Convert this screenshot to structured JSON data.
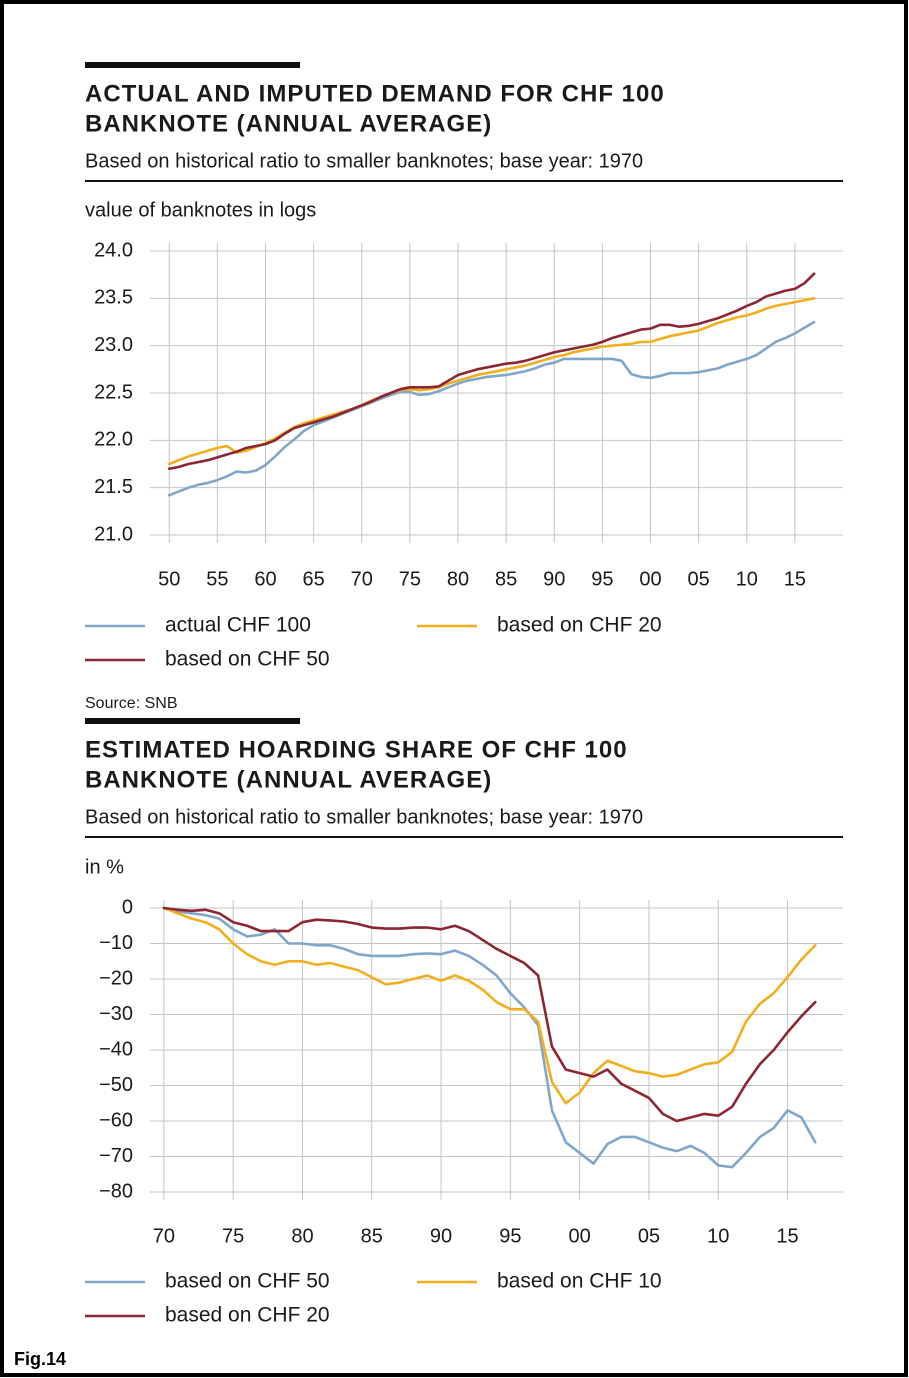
{
  "chart_data": [
    {
      "type": "line",
      "title": [
        "ACTUAL AND IMPUTED DEMAND FOR CHF 100",
        "BANKNOTE (ANNUAL AVERAGE)"
      ],
      "subtitle": "Based on historical ratio to smaller banknotes; base year: 1970",
      "y_label": "value of banknotes in logs",
      "source": "Source: SNB",
      "x": [
        1950,
        1951,
        1952,
        1953,
        1954,
        1955,
        1956,
        1957,
        1958,
        1959,
        1960,
        1961,
        1962,
        1963,
        1964,
        1965,
        1966,
        1967,
        1968,
        1969,
        1970,
        1971,
        1972,
        1973,
        1974,
        1975,
        1976,
        1977,
        1978,
        1979,
        1980,
        1981,
        1982,
        1983,
        1984,
        1985,
        1986,
        1987,
        1988,
        1989,
        1990,
        1991,
        1992,
        1993,
        1994,
        1995,
        1996,
        1997,
        1998,
        1999,
        2000,
        2001,
        2002,
        2003,
        2004,
        2005,
        2006,
        2007,
        2008,
        2009,
        2010,
        2011,
        2012,
        2013,
        2014,
        2015,
        2016,
        2017
      ],
      "xlim": [
        1948,
        2020
      ],
      "xticks": [
        {
          "value": 1950,
          "label": "50"
        },
        {
          "value": 1955,
          "label": "55"
        },
        {
          "value": 1960,
          "label": "60"
        },
        {
          "value": 1965,
          "label": "65"
        },
        {
          "value": 1970,
          "label": "70"
        },
        {
          "value": 1975,
          "label": "75"
        },
        {
          "value": 1980,
          "label": "80"
        },
        {
          "value": 1985,
          "label": "85"
        },
        {
          "value": 1990,
          "label": "90"
        },
        {
          "value": 1995,
          "label": "95"
        },
        {
          "value": 2000,
          "label": "00"
        },
        {
          "value": 2005,
          "label": "05"
        },
        {
          "value": 2010,
          "label": "10"
        },
        {
          "value": 2015,
          "label": "15"
        }
      ],
      "ylim": [
        21,
        24
      ],
      "yticks": [
        {
          "value": 21,
          "label": "21.0"
        },
        21.5,
        {
          "value": 22,
          "label": "22.0"
        },
        22.5,
        {
          "value": 23,
          "label": "23.0"
        },
        23.5,
        {
          "value": 24,
          "label": "24.0"
        }
      ],
      "grid": true,
      "series": [
        {
          "name": "actual CHF 100",
          "color": "#80a7ca",
          "values": [
            21.42,
            21.46,
            21.5,
            21.53,
            21.55,
            21.58,
            21.62,
            21.67,
            21.66,
            21.68,
            21.74,
            21.83,
            21.93,
            22.01,
            22.1,
            22.16,
            22.2,
            22.24,
            22.28,
            22.32,
            22.36,
            22.4,
            22.44,
            22.48,
            22.51,
            22.51,
            22.48,
            22.49,
            22.52,
            22.56,
            22.6,
            22.63,
            22.65,
            22.67,
            22.68,
            22.69,
            22.71,
            22.73,
            22.76,
            22.8,
            22.82,
            22.86,
            22.86,
            22.86,
            22.86,
            22.86,
            22.86,
            22.84,
            22.7,
            22.67,
            22.66,
            22.68,
            22.71,
            22.71,
            22.71,
            22.72,
            22.74,
            22.76,
            22.8,
            22.83,
            22.86,
            22.9,
            22.97,
            23.04,
            23.08,
            23.13,
            23.19,
            23.25
          ]
        },
        {
          "name": "based on CHF 20",
          "color": "#f2ae1c",
          "values": [
            21.75,
            21.79,
            21.83,
            21.86,
            21.89,
            21.92,
            21.94,
            21.87,
            21.89,
            21.93,
            21.97,
            22.02,
            22.08,
            22.14,
            22.18,
            22.21,
            22.24,
            22.27,
            22.3,
            22.33,
            22.37,
            22.42,
            22.46,
            22.5,
            22.53,
            22.54,
            22.53,
            22.54,
            22.56,
            22.6,
            22.63,
            22.66,
            22.69,
            22.71,
            22.73,
            22.75,
            22.77,
            22.79,
            22.82,
            22.85,
            22.88,
            22.9,
            22.93,
            22.95,
            22.97,
            22.99,
            23.0,
            23.01,
            23.02,
            23.04,
            23.04,
            23.07,
            23.1,
            23.12,
            23.14,
            23.16,
            23.2,
            23.24,
            23.27,
            23.3,
            23.32,
            23.35,
            23.39,
            23.42,
            23.44,
            23.46,
            23.48,
            23.5
          ]
        },
        {
          "name": "based on CHF 50",
          "color": "#8c2632",
          "values": [
            21.7,
            21.72,
            21.75,
            21.77,
            21.79,
            21.82,
            21.85,
            21.88,
            21.92,
            21.94,
            21.96,
            22.0,
            22.07,
            22.13,
            22.16,
            22.19,
            22.22,
            22.25,
            22.29,
            22.33,
            22.37,
            22.41,
            22.46,
            22.5,
            22.54,
            22.56,
            22.56,
            22.56,
            22.57,
            22.63,
            22.69,
            22.72,
            22.75,
            22.77,
            22.79,
            22.81,
            22.82,
            22.84,
            22.87,
            22.9,
            22.93,
            22.95,
            22.97,
            22.99,
            23.01,
            23.04,
            23.08,
            23.11,
            23.14,
            23.17,
            23.18,
            23.22,
            23.22,
            23.2,
            23.21,
            23.23,
            23.26,
            23.29,
            23.33,
            23.37,
            23.42,
            23.46,
            23.52,
            23.55,
            23.58,
            23.6,
            23.66,
            23.76
          ]
        }
      ]
    },
    {
      "type": "line",
      "title": [
        "ESTIMATED HOARDING SHARE OF CHF 100",
        "BANKNOTE (ANNUAL AVERAGE)"
      ],
      "subtitle": "Based on historical ratio to smaller banknotes; base year: 1970",
      "y_label": "in %",
      "x": [
        1970,
        1971,
        1972,
        1973,
        1974,
        1975,
        1976,
        1977,
        1978,
        1979,
        1980,
        1981,
        1982,
        1983,
        1984,
        1985,
        1986,
        1987,
        1988,
        1989,
        1990,
        1991,
        1992,
        1993,
        1994,
        1995,
        1996,
        1997,
        1998,
        1999,
        2000,
        2001,
        2002,
        2003,
        2004,
        2005,
        2006,
        2007,
        2008,
        2009,
        2010,
        2011,
        2012,
        2013,
        2014,
        2015,
        2016,
        2017
      ],
      "xlim": [
        1969,
        2019
      ],
      "xticks": [
        {
          "value": 1970,
          "label": "70"
        },
        {
          "value": 1975,
          "label": "75"
        },
        {
          "value": 1980,
          "label": "80"
        },
        {
          "value": 1985,
          "label": "85"
        },
        {
          "value": 1990,
          "label": "90"
        },
        {
          "value": 1995,
          "label": "95"
        },
        {
          "value": 2000,
          "label": "00"
        },
        {
          "value": 2005,
          "label": "05"
        },
        {
          "value": 2010,
          "label": "10"
        },
        {
          "value": 2015,
          "label": "15"
        }
      ],
      "ylim": [
        -80,
        0
      ],
      "yticks": [
        0,
        {
          "value": -10,
          "label": "−10"
        },
        {
          "value": -20,
          "label": "−20"
        },
        {
          "value": -30,
          "label": "−30"
        },
        {
          "value": -40,
          "label": "−40"
        },
        {
          "value": -50,
          "label": "−50"
        },
        {
          "value": -60,
          "label": "−60"
        },
        {
          "value": -70,
          "label": "−70"
        },
        {
          "value": -80,
          "label": "−80"
        }
      ],
      "grid": true,
      "series": [
        {
          "name": "based on CHF 50",
          "color": "#80a7ca",
          "values": [
            0,
            -1,
            -1.5,
            -2,
            -3,
            -6,
            -8,
            -7.5,
            -6,
            -10,
            -10,
            -10.5,
            -10.5,
            -11.5,
            -13,
            -13.5,
            -13.5,
            -13.5,
            -13,
            -12.8,
            -13,
            -12,
            -13.5,
            -16,
            -19,
            -24,
            -28,
            -33,
            -57,
            -66,
            -69,
            -72,
            -66.5,
            -64.5,
            -64.5,
            -66,
            -67.5,
            -68.5,
            -67,
            -69,
            -72.5,
            -73,
            -69,
            -64.5,
            -62,
            -57,
            -59,
            -66
          ]
        },
        {
          "name": "based on CHF 10",
          "color": "#f2ae1c",
          "values": [
            0,
            -1.5,
            -3,
            -4,
            -6,
            -10,
            -13,
            -15,
            -16,
            -15,
            -15,
            -16,
            -15.5,
            -16.5,
            -17.5,
            -19.5,
            -21.5,
            -21,
            -20,
            -19,
            -20.5,
            -19,
            -20.5,
            -23,
            -26.5,
            -28.5,
            -28.5,
            -32,
            -49,
            -55,
            -52,
            -46.5,
            -43,
            -44.5,
            -46,
            -46.5,
            -47.5,
            -47,
            -45.5,
            -44,
            -43.5,
            -40.5,
            -32,
            -27,
            -24,
            -19.5,
            -14.5,
            -10.5
          ]
        },
        {
          "name": "based on CHF 20",
          "color": "#8c2632",
          "values": [
            0,
            -0.5,
            -0.8,
            -0.5,
            -1.5,
            -4,
            -5,
            -6.5,
            -6.5,
            -6.5,
            -4,
            -3.3,
            -3.5,
            -3.8,
            -4.5,
            -5.5,
            -5.8,
            -5.8,
            -5.5,
            -5.5,
            -6,
            -5,
            -6.5,
            -9,
            -11.5,
            -13.5,
            -15.5,
            -19,
            -39,
            -45.5,
            -46.5,
            -47.5,
            -45.5,
            -49.5,
            -51.5,
            -53.5,
            -58,
            -60,
            -59,
            -58,
            -58.5,
            -56,
            -49.5,
            -44,
            -40,
            -35,
            -30.5,
            -26.5
          ]
        }
      ]
    }
  ],
  "figure_label": "Fig.14"
}
